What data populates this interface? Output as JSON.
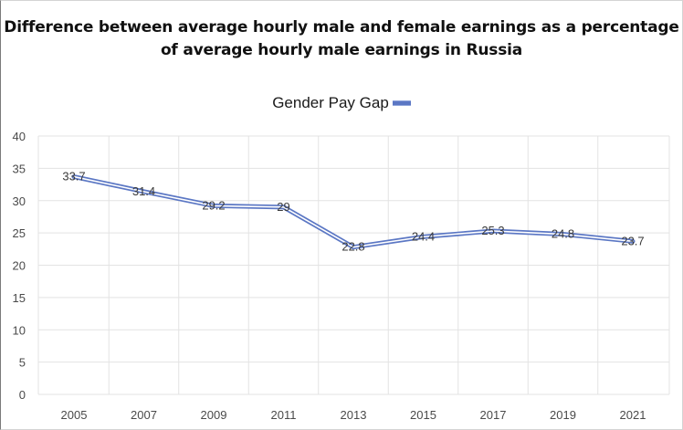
{
  "chart_data": {
    "type": "line",
    "title": "Difference between average hourly male and female earnings as a percentage of average hourly male earnings in Russia",
    "xlabel": "",
    "ylabel": "",
    "ylim": [
      0,
      40
    ],
    "yticks": [
      0,
      5,
      10,
      15,
      20,
      25,
      30,
      35,
      40
    ],
    "categories": [
      "2005",
      "2007",
      "2009",
      "2011",
      "2013",
      "2015",
      "2017",
      "2019",
      "2021"
    ],
    "series": [
      {
        "name": "Gender Pay Gap",
        "values": [
          33.7,
          31.4,
          29.2,
          29,
          22.8,
          24.4,
          25.3,
          24.8,
          23.7
        ],
        "color": "#5b77c4"
      }
    ],
    "legend_position": "top-center",
    "grid": true
  }
}
